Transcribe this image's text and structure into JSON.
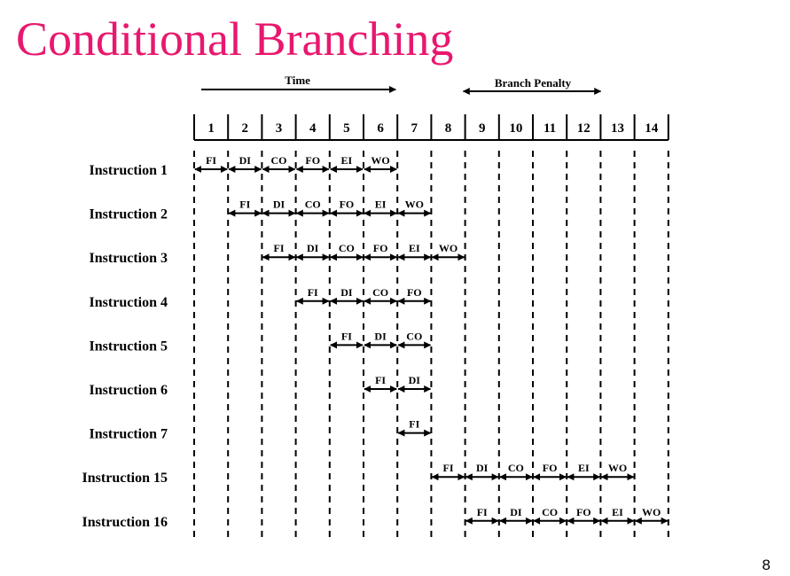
{
  "title": "Conditional Branching",
  "page_number": "8",
  "time_label": "Time",
  "penalty_label": "Branch Penalty",
  "cycles": [
    "1",
    "2",
    "3",
    "4",
    "5",
    "6",
    "7",
    "8",
    "9",
    "10",
    "11",
    "12",
    "13",
    "14"
  ],
  "stage_names": [
    "FI",
    "DI",
    "CO",
    "FO",
    "EI",
    "WO"
  ],
  "instructions": [
    {
      "label": "Instruction 1",
      "start": 1,
      "stages": [
        "FI",
        "DI",
        "CO",
        "FO",
        "EI",
        "WO"
      ]
    },
    {
      "label": "Instruction 2",
      "start": 2,
      "stages": [
        "FI",
        "DI",
        "CO",
        "FO",
        "EI",
        "WO"
      ]
    },
    {
      "label": "Instruction 3",
      "start": 3,
      "stages": [
        "FI",
        "DI",
        "CO",
        "FO",
        "EI",
        "WO"
      ]
    },
    {
      "label": "Instruction 4",
      "start": 4,
      "stages": [
        "FI",
        "DI",
        "CO",
        "FO"
      ]
    },
    {
      "label": "Instruction 5",
      "start": 5,
      "stages": [
        "FI",
        "DI",
        "CO"
      ]
    },
    {
      "label": "Instruction 6",
      "start": 6,
      "stages": [
        "FI",
        "DI"
      ]
    },
    {
      "label": "Instruction 7",
      "start": 7,
      "stages": [
        "FI"
      ]
    },
    {
      "label": "Instruction 15",
      "start": 8,
      "stages": [
        "FI",
        "DI",
        "CO",
        "FO",
        "EI",
        "WO"
      ]
    },
    {
      "label": "Instruction 16",
      "start": 9,
      "stages": [
        "FI",
        "DI",
        "CO",
        "FO",
        "EI",
        "WO"
      ]
    }
  ],
  "time_arrow": {
    "from_cycle": 1,
    "to_cycle": 6
  },
  "penalty_arrow": {
    "from_cycle": 9,
    "to_cycle": 13
  }
}
